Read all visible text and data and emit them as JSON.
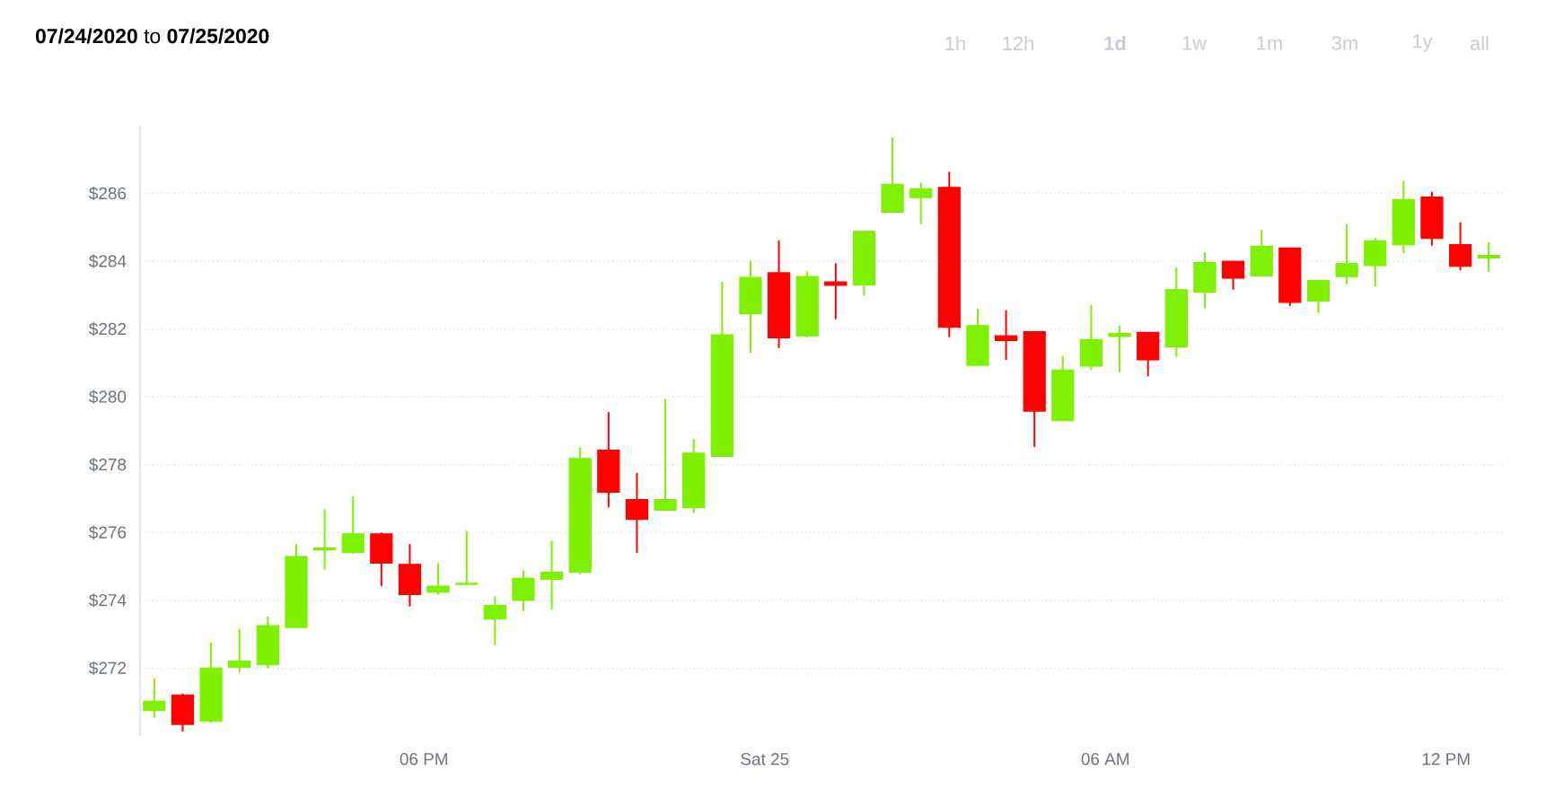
{
  "chart_data": {
    "type": "candlestick",
    "title": "**07/24/2020** to **07/25/2020**",
    "annotations": [
      "1h",
      "12h",
      "**1d**",
      "1w",
      "1m",
      "3m",
      "1y",
      "all"
    ],
    "x": [
      "2020-07-24T13:15",
      "2020-07-24T13:45",
      "2020-07-24T14:15",
      "2020-07-24T14:45",
      "2020-07-24T15:15",
      "2020-07-24T15:45",
      "2020-07-24T16:15",
      "2020-07-24T16:45",
      "2020-07-24T17:15",
      "2020-07-24T17:45",
      "2020-07-24T18:15",
      "2020-07-24T18:45",
      "2020-07-24T19:15",
      "2020-07-24T19:45",
      "2020-07-24T20:15",
      "2020-07-24T20:45",
      "2020-07-24T21:15",
      "2020-07-24T21:45",
      "2020-07-24T22:15",
      "2020-07-24T22:45",
      "2020-07-24T23:15",
      "2020-07-24T23:45",
      "2020-07-25T00:15",
      "2020-07-25T00:45",
      "2020-07-25T01:15",
      "2020-07-25T01:45",
      "2020-07-25T02:15",
      "2020-07-25T02:45",
      "2020-07-25T03:15",
      "2020-07-25T03:45",
      "2020-07-25T04:15",
      "2020-07-25T04:45",
      "2020-07-25T05:15",
      "2020-07-25T05:45",
      "2020-07-25T06:15",
      "2020-07-25T06:45",
      "2020-07-25T07:15",
      "2020-07-25T07:45",
      "2020-07-25T08:15",
      "2020-07-25T08:45",
      "2020-07-25T09:15",
      "2020-07-25T09:45",
      "2020-07-25T10:15",
      "2020-07-25T10:45",
      "2020-07-25T11:15",
      "2020-07-25T11:45",
      "2020-07-25T12:15",
      "2020-07-25T12:45"
    ],
    "ohlc": [
      [
        270.75,
        271.69,
        270.54,
        271.02
      ],
      [
        271.21,
        271.25,
        270.13,
        270.34
      ],
      [
        270.43,
        272.76,
        270.4,
        272.0
      ],
      [
        272.03,
        273.16,
        271.87,
        272.21
      ],
      [
        272.1,
        273.52,
        272.0,
        273.25
      ],
      [
        273.2,
        275.66,
        273.2,
        275.29
      ],
      [
        275.49,
        276.69,
        274.9,
        275.54
      ],
      [
        275.41,
        277.06,
        275.38,
        275.96
      ],
      [
        275.96,
        276.0,
        274.42,
        275.1
      ],
      [
        275.06,
        275.66,
        273.82,
        274.17
      ],
      [
        274.24,
        275.1,
        274.17,
        274.42
      ],
      [
        274.47,
        276.05,
        274.47,
        274.5
      ],
      [
        273.45,
        274.12,
        272.68,
        273.85
      ],
      [
        274.0,
        274.88,
        273.68,
        274.65
      ],
      [
        274.62,
        275.75,
        273.74,
        274.83
      ],
      [
        274.83,
        278.5,
        274.76,
        278.18
      ],
      [
        278.43,
        279.55,
        276.74,
        277.19
      ],
      [
        276.97,
        277.76,
        275.4,
        276.39
      ],
      [
        276.66,
        279.94,
        276.66,
        276.97
      ],
      [
        276.73,
        278.75,
        276.58,
        278.34
      ],
      [
        278.25,
        283.39,
        278.25,
        281.83
      ],
      [
        282.45,
        284.0,
        281.3,
        283.52
      ],
      [
        283.66,
        284.62,
        281.44,
        281.74
      ],
      [
        281.8,
        283.71,
        281.76,
        283.55
      ],
      [
        283.39,
        283.94,
        282.29,
        283.29
      ],
      [
        283.3,
        284.88,
        282.99,
        284.88
      ],
      [
        285.45,
        287.65,
        285.45,
        286.27
      ],
      [
        285.88,
        286.32,
        285.1,
        286.14
      ],
      [
        286.18,
        286.64,
        281.76,
        282.05
      ],
      [
        280.93,
        282.6,
        280.93,
        282.1
      ],
      [
        281.8,
        282.56,
        281.09,
        281.66
      ],
      [
        281.92,
        281.92,
        278.52,
        279.58
      ],
      [
        279.3,
        281.21,
        279.3,
        280.79
      ],
      [
        280.91,
        282.7,
        280.79,
        281.69
      ],
      [
        281.78,
        282.1,
        280.73,
        281.87
      ],
      [
        281.9,
        281.9,
        280.61,
        281.09
      ],
      [
        281.48,
        283.82,
        281.18,
        283.16
      ],
      [
        283.09,
        284.26,
        282.61,
        283.96
      ],
      [
        284.0,
        284.0,
        283.16,
        283.5
      ],
      [
        283.57,
        284.92,
        283.57,
        284.44
      ],
      [
        284.39,
        284.39,
        282.68,
        282.79
      ],
      [
        282.83,
        283.43,
        282.47,
        283.43
      ],
      [
        283.55,
        285.1,
        283.32,
        283.93
      ],
      [
        283.87,
        284.69,
        283.26,
        284.6
      ],
      [
        284.49,
        286.37,
        284.23,
        285.82
      ],
      [
        285.89,
        286.05,
        284.46,
        284.67
      ],
      [
        284.49,
        285.15,
        283.73,
        283.85
      ],
      [
        284.1,
        284.56,
        283.68,
        284.17
      ]
    ],
    "colors": [
      "#7ff000",
      "#ff0000",
      "#7ff000",
      "#7ff000",
      "#7ff000",
      "#7ff000",
      "#7ff000",
      "#7ff000",
      "#ff0000",
      "#ff0000",
      "#7ff000",
      "#7ff000",
      "#7ff000",
      "#7ff000",
      "#7ff000",
      "#7ff000",
      "#ff0000",
      "#ff0000",
      "#7ff000",
      "#7ff000",
      "#7ff000",
      "#7ff000",
      "#ff0000",
      "#7ff000",
      "#ff0000",
      "#7ff000",
      "#7ff000",
      "#7ff000",
      "#ff0000",
      "#7ff000",
      "#ff0000",
      "#ff0000",
      "#7ff000",
      "#7ff000",
      "#7ff000",
      "#ff0000",
      "#7ff000",
      "#7ff000",
      "#ff0000",
      "#7ff000",
      "#ff0000",
      "#7ff000",
      "#7ff000",
      "#7ff000",
      "#7ff000",
      "#ff0000",
      "#ff0000",
      "#7ff000"
    ],
    "xlim": [
      "2020-07-24T13:00",
      "2020-07-25T13:00"
    ],
    "xticks": [
      {
        "value": "2020-07-24T18:00",
        "label": "06 PM"
      },
      {
        "value": "2020-07-25T00:00",
        "label": "Sat 25"
      },
      {
        "value": "2020-07-25T06:00",
        "label": "06 AM"
      },
      {
        "value": "2020-07-25T12:00",
        "label": "12 PM"
      }
    ],
    "ylim": [
      270,
      288
    ],
    "yticks": [
      {
        "value": 272,
        "label": "$272"
      },
      {
        "value": 274,
        "label": "$274"
      },
      {
        "value": 276,
        "label": "$276"
      },
      {
        "value": 278,
        "label": "$278"
      },
      {
        "value": 280,
        "label": "$280"
      },
      {
        "value": 282,
        "label": "$282"
      },
      {
        "value": 284,
        "label": "$284"
      },
      {
        "value": 286,
        "label": "$286"
      }
    ],
    "grid": "y"
  }
}
